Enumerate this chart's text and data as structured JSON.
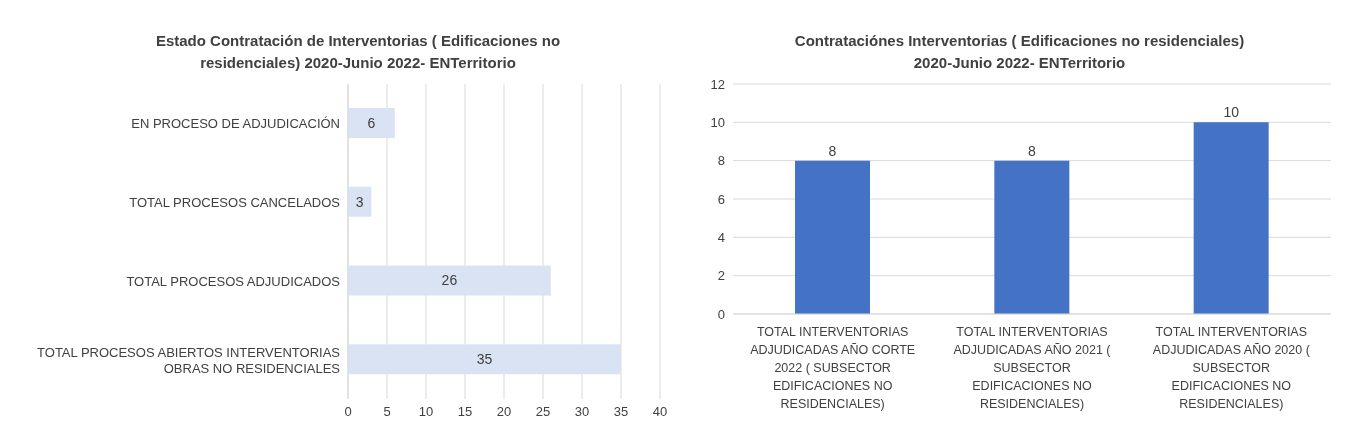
{
  "chart_data": [
    {
      "type": "bar",
      "orientation": "horizontal",
      "title": "Estado Contratación de Interventorias ( Edificaciones no residenciales) 2020-Junio 2022- ENTerritorio",
      "categories": [
        "EN PROCESO DE ADJUDICACIÓN",
        "TOTAL PROCESOS CANCELADOS",
        "TOTAL PROCESOS ADJUDICADOS",
        "TOTAL PROCESOS ABIERTOS INTERVENTORIAS OBRAS NO RESIDENCIALES"
      ],
      "values": [
        6,
        3,
        26,
        35
      ],
      "color": "#dae3f3",
      "xlim": [
        0,
        40
      ],
      "xticks": [
        0,
        5,
        10,
        15,
        20,
        25,
        30,
        35,
        40
      ],
      "grid": "x",
      "data_labels": true
    },
    {
      "type": "bar",
      "title": "Contrataciónes Interventorias ( Edificaciones no residenciales) 2020-Junio 2022- ENTerritorio",
      "categories": [
        "TOTAL INTERVENTORIAS ADJUDICADAS AÑO CORTE 2022 ( SUBSECTOR EDIFICACIONES NO RESIDENCIALES)",
        "TOTAL INTERVENTORIAS ADJUDICADAS AÑO 2021 ( SUBSECTOR EDIFICACIONES NO RESIDENCIALES)",
        "TOTAL INTERVENTORIAS ADJUDICADAS AÑO 2020 ( SUBSECTOR EDIFICACIONES NO RESIDENCIALES)"
      ],
      "values": [
        8,
        8,
        10
      ],
      "color": "#4472c4",
      "ylim": [
        0,
        12
      ],
      "yticks": [
        0,
        2,
        4,
        6,
        8,
        10,
        12
      ],
      "grid": "y",
      "data_labels": true
    }
  ]
}
